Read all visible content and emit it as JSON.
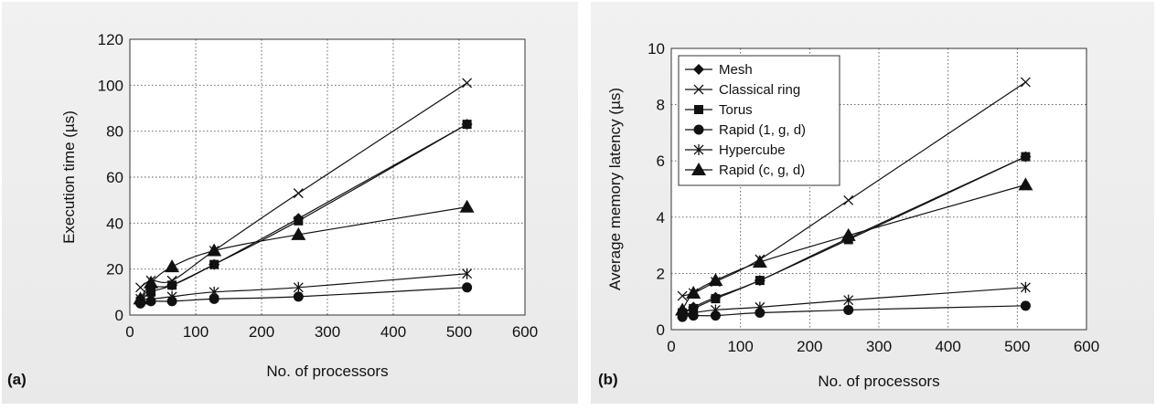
{
  "colors": {
    "background": "#ececec",
    "plot": "#ffffff",
    "ink": "#111111"
  },
  "chart_data": [
    {
      "type": "line",
      "panel_label": "(a)",
      "xlabel": "No. of processors",
      "ylabel": "Execution time (µs)",
      "xlim": [
        0,
        600
      ],
      "ylim": [
        0,
        120
      ],
      "xticks": [
        0,
        100,
        200,
        300,
        400,
        500,
        600
      ],
      "yticks": [
        0,
        20,
        40,
        60,
        80,
        100,
        120
      ],
      "grid": true,
      "legend": false,
      "series": [
        {
          "name": "Mesh",
          "marker": "diamond",
          "x": [
            16,
            32,
            64,
            128,
            256,
            512
          ],
          "y": [
            6,
            12,
            13,
            22,
            42,
            83
          ]
        },
        {
          "name": "Classical ring",
          "marker": "x",
          "x": [
            16,
            32,
            64,
            128,
            256,
            512
          ],
          "y": [
            12,
            15,
            15,
            28,
            53,
            101
          ]
        },
        {
          "name": "Torus",
          "marker": "square",
          "x": [
            16,
            32,
            64,
            128,
            256,
            512
          ],
          "y": [
            6,
            10,
            13,
            22,
            41,
            83
          ]
        },
        {
          "name": "Rapid (1, g, d)",
          "marker": "circle",
          "x": [
            16,
            32,
            64,
            128,
            256,
            512
          ],
          "y": [
            5,
            6,
            6,
            7,
            8,
            12
          ]
        },
        {
          "name": "Hypercube",
          "marker": "asterisk",
          "x": [
            16,
            32,
            64,
            128,
            256,
            512
          ],
          "y": [
            7,
            7,
            8,
            10,
            12,
            18
          ]
        },
        {
          "name": "Rapid (c, g, d)",
          "marker": "triangle",
          "x": [
            16,
            32,
            64,
            128,
            256,
            512
          ],
          "y": [
            7,
            14,
            21,
            28,
            35,
            47
          ]
        }
      ]
    },
    {
      "type": "line",
      "panel_label": "(b)",
      "xlabel": "No. of processors",
      "ylabel": "Average memory latency (µs)",
      "xlim": [
        0,
        600
      ],
      "ylim": [
        0,
        10
      ],
      "xticks": [
        0,
        100,
        200,
        300,
        400,
        500,
        600
      ],
      "yticks": [
        0,
        2,
        4,
        6,
        8,
        10
      ],
      "grid": true,
      "legend": true,
      "legend_position": "top-left",
      "series": [
        {
          "name": "Mesh",
          "marker": "diamond",
          "x": [
            16,
            32,
            64,
            128,
            256,
            512
          ],
          "y": [
            0.6,
            0.8,
            1.15,
            1.75,
            3.25,
            6.15
          ]
        },
        {
          "name": "Classical ring",
          "marker": "x",
          "x": [
            16,
            32,
            64,
            128,
            256,
            512
          ],
          "y": [
            1.2,
            1.3,
            1.7,
            2.5,
            4.6,
            8.8
          ]
        },
        {
          "name": "Torus",
          "marker": "square",
          "x": [
            16,
            32,
            64,
            128,
            256,
            512
          ],
          "y": [
            0.6,
            0.75,
            1.1,
            1.75,
            3.2,
            6.15
          ]
        },
        {
          "name": "Rapid (1, g, d)",
          "marker": "circle",
          "x": [
            16,
            32,
            64,
            128,
            256,
            512
          ],
          "y": [
            0.45,
            0.5,
            0.5,
            0.6,
            0.7,
            0.85
          ]
        },
        {
          "name": "Hypercube",
          "marker": "asterisk",
          "x": [
            16,
            32,
            64,
            128,
            256,
            512
          ],
          "y": [
            0.55,
            0.6,
            0.7,
            0.8,
            1.05,
            1.5
          ]
        },
        {
          "name": "Rapid (c, g, d)",
          "marker": "triangle",
          "x": [
            16,
            32,
            64,
            128,
            256,
            512
          ],
          "y": [
            0.7,
            1.3,
            1.75,
            2.4,
            3.35,
            5.15
          ]
        }
      ]
    }
  ]
}
